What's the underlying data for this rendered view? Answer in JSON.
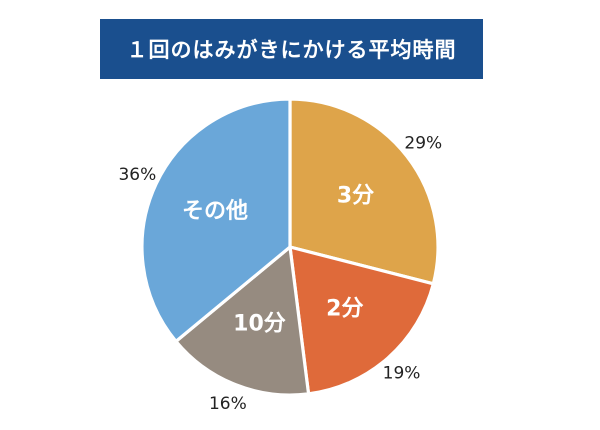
{
  "colors": {
    "title_bg": "#1a4f8e",
    "title_text": "#ffffff",
    "slice_label": "#ffffff",
    "pct_label": "#222222"
  },
  "chart_data": {
    "type": "pie",
    "title": "１回のはみがきにかける平均時間",
    "slices": [
      {
        "label": "3分",
        "percent_label": "29%",
        "value": 29,
        "color": "#dea44a"
      },
      {
        "label": "2分",
        "percent_label": "19%",
        "value": 19,
        "color": "#df6a3a"
      },
      {
        "label": "10分",
        "percent_label": "16%",
        "value": 16,
        "color": "#968b80"
      },
      {
        "label": "その他",
        "percent_label": "36%",
        "value": 36,
        "color": "#6aa7d9"
      }
    ],
    "start_angle_deg": 0,
    "direction": "clockwise"
  }
}
